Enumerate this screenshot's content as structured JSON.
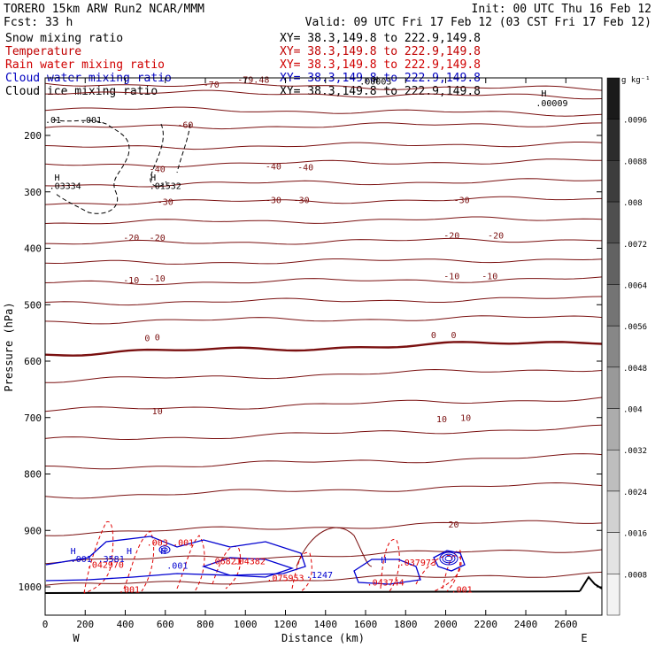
{
  "header": {
    "line1_left": "TORERO  15km ARW   Run2    NCAR/MMM",
    "line1_right": "Init: 00 UTC Thu 16 Feb 12",
    "line2_left": "Fcst:    33 h",
    "line2_right": "Valid: 09 UTC Fri 17 Feb 12 (03 CST Fri 17 Feb 12)"
  },
  "fields": [
    {
      "label": "Snow mixing ratio",
      "xy": "XY=  38.3,149.8 to 222.9,149.8",
      "color": "#000000"
    },
    {
      "label": "Temperature",
      "xy": "XY=  38.3,149.8 to 222.9,149.8",
      "color": "#c00000"
    },
    {
      "label": "Rain water mixing ratio",
      "xy": "XY=  38.3,149.8 to 222.9,149.8",
      "color": "#d00000"
    },
    {
      "label": "Cloud water mixing ratio",
      "xy": "XY=  38.3,149.8 to 222.9,149.8",
      "color": "#0000c0"
    },
    {
      "label": "Cloud ice mixing ratio",
      "xy": "XY=  38.3,149.8 to 222.9,149.8",
      "color": "#000000"
    }
  ],
  "chart_data": {
    "type": "contour",
    "xlabel": "Distance (km)",
    "ylabel": "Pressure (hPa)",
    "xlim": [
      0,
      2780
    ],
    "ylim": [
      1050,
      100
    ],
    "x_ticks": [
      "0",
      "200",
      "400",
      "600",
      "800",
      "1000",
      "1200",
      "1400",
      "1600",
      "1800",
      "2000",
      "2200",
      "2400",
      "2600"
    ],
    "y_ticks": [
      "200",
      "300",
      "400",
      "500",
      "600",
      "700",
      "800",
      "900",
      "1000"
    ],
    "west_label": "W",
    "east_label": "E",
    "temperature_labels": [
      {
        "text": "-70",
        "x": 830,
        "p": 115
      },
      {
        "text": "-79.48",
        "x": 1040,
        "p": 107
      },
      {
        "text": "-60",
        "x": 700,
        "p": 187
      },
      {
        "text": "-40",
        "x": 560,
        "p": 265
      },
      {
        "text": "-40",
        "x": 1140,
        "p": 260
      },
      {
        "text": "-40",
        "x": 1300,
        "p": 262
      },
      {
        "text": "-30",
        "x": 600,
        "p": 323
      },
      {
        "text": "-30",
        "x": 1140,
        "p": 320
      },
      {
        "text": "-30",
        "x": 1280,
        "p": 320
      },
      {
        "text": "-30",
        "x": 2080,
        "p": 320
      },
      {
        "text": "-20",
        "x": 430,
        "p": 387
      },
      {
        "text": "-20",
        "x": 560,
        "p": 387
      },
      {
        "text": "-20",
        "x": 2030,
        "p": 383
      },
      {
        "text": "-20",
        "x": 2250,
        "p": 383
      },
      {
        "text": "-10",
        "x": 430,
        "p": 462
      },
      {
        "text": "-10",
        "x": 560,
        "p": 459
      },
      {
        "text": "-10",
        "x": 2030,
        "p": 455
      },
      {
        "text": "-10",
        "x": 2220,
        "p": 455
      },
      {
        "text": "0",
        "x": 510,
        "p": 565
      },
      {
        "text": "0",
        "x": 560,
        "p": 563
      },
      {
        "text": "0",
        "x": 1940,
        "p": 559
      },
      {
        "text": "0",
        "x": 2040,
        "p": 559
      },
      {
        "text": "10",
        "x": 560,
        "p": 694
      },
      {
        "text": "10",
        "x": 1980,
        "p": 708
      },
      {
        "text": "10",
        "x": 2100,
        "p": 706
      },
      {
        "text": "20",
        "x": 2040,
        "p": 895
      }
    ],
    "temperature_levels_p_at_x0": [
      108,
      122,
      152,
      187,
      222,
      253,
      288,
      320,
      355,
      392,
      427,
      462,
      497,
      530,
      587,
      635,
      688,
      740,
      790,
      840,
      905,
      955,
      998
    ],
    "freezing_level": {
      "value": "0",
      "p_start": 587,
      "p_end": 563
    },
    "cloud_ice_labels": [
      {
        "text": "H",
        "x": 60,
        "p": 280
      },
      {
        "text": ".03334",
        "x": 100,
        "p": 295
      },
      {
        "text": "H",
        "x": 540,
        "p": 280
      },
      {
        "text": ".01532",
        "x": 600,
        "p": 295
      },
      {
        "text": "H",
        "x": 2490,
        "p": 131
      },
      {
        "text": ".00009",
        "x": 2530,
        "p": 148
      },
      {
        "text": ".001",
        "x": 230,
        "p": 178
      },
      {
        "text": ".01",
        "x": 40,
        "p": 178
      }
    ],
    "snow_labels": [
      {
        "text": "H",
        "x": 1650,
        "p": 107
      },
      {
        "text": ".00003",
        "x": 1650,
        "p": 110
      }
    ],
    "rain_labels": [
      {
        "text": ".042970",
        "x": 300,
        "p": 966
      },
      {
        "text": ".003",
        "x": 560,
        "p": 927
      },
      {
        "text": ".001",
        "x": 690,
        "p": 927
      },
      {
        "text": ".06821",
        "x": 900,
        "p": 960
      },
      {
        "text": ".04382",
        "x": 1020,
        "p": 960
      },
      {
        "text": ".075953",
        "x": 1200,
        "p": 990
      },
      {
        "text": ".043744",
        "x": 1700,
        "p": 998
      },
      {
        "text": ".037973",
        "x": 1860,
        "p": 962
      },
      {
        "text": ".001",
        "x": 2080,
        "p": 1010
      },
      {
        "text": ".001",
        "x": 420,
        "p": 1010
      }
    ],
    "cloud_water_labels": [
      {
        "text": "H",
        "x": 140,
        "p": 942
      },
      {
        "text": ".001",
        "x": 180,
        "p": 956
      },
      {
        "text": "H",
        "x": 420,
        "p": 942
      },
      {
        "text": ".3581",
        "x": 330,
        "p": 956
      },
      {
        "text": "H",
        "x": 590,
        "p": 942
      },
      {
        "text": ".001",
        "x": 660,
        "p": 968
      },
      {
        "text": ".1247",
        "x": 1370,
        "p": 984
      },
      {
        "text": "H",
        "x": 1690,
        "p": 958
      }
    ],
    "colorbar": {
      "unit": "g kg⁻¹",
      "tick_labels": [
        ".0096",
        ".0088",
        ".008",
        ".0072",
        ".0064",
        ".0056",
        ".0048",
        ".004",
        ".0032",
        ".0024",
        ".0016",
        ".0008"
      ],
      "colors": [
        "#1a1a1a",
        "#2c2c2c",
        "#3d3d3d",
        "#4f4f4f",
        "#626262",
        "#747474",
        "#878787",
        "#999999",
        "#acacac",
        "#bebebe",
        "#d1d1d1",
        "#e3e3e3",
        "#f3f3f3"
      ]
    },
    "colors": {
      "temperature": "#7a1010",
      "rain": "#e00000",
      "cloud_water": "#0000d0",
      "ice": "#000000"
    }
  }
}
